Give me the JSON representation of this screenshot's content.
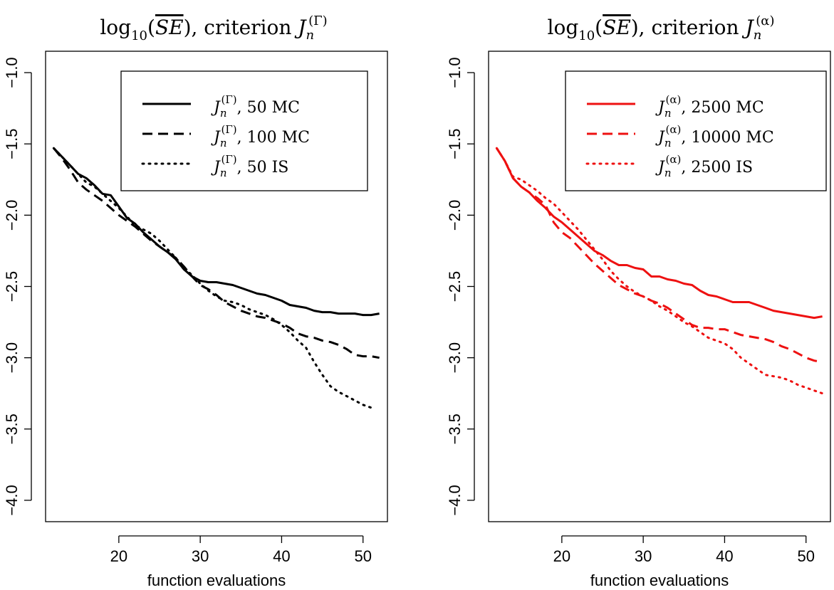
{
  "chart_data": [
    {
      "type": "line",
      "title": "log₁₀(SE̅), criterion Jₙ^(Γ)",
      "title_parts": {
        "func": "log",
        "base": "10",
        "quantity": "SE",
        "text": "criterion",
        "sym": "J",
        "sub": "n",
        "sup": "(Γ)"
      },
      "xlabel": "function evaluations",
      "ylabel": "",
      "xlim": [
        11,
        53
      ],
      "ylim": [
        -4.15,
        -0.85
      ],
      "x_ticks": [
        20,
        30,
        40,
        50
      ],
      "y_ticks": [
        -1.0,
        -1.5,
        -2.0,
        -2.5,
        -3.0,
        -3.5,
        -4.0
      ],
      "x_tick_labels": [
        "20",
        "30",
        "40",
        "50"
      ],
      "y_tick_labels": [
        "−1.0",
        "−1.5",
        "−2.0",
        "−2.5",
        "−3.0",
        "−3.5",
        "−4.0"
      ],
      "legend_position": "top-right",
      "grid": false,
      "series": [
        {
          "name": "Jₙ^(Γ), 50 MC",
          "label_sym": "J",
          "label_sub": "n",
          "label_sup": "(Γ)",
          "label_rest": ", 50 MC",
          "style": "solid",
          "color": "#000000",
          "x": [
            12,
            13,
            14,
            15,
            16,
            17,
            18,
            19,
            20,
            21,
            22,
            23,
            24,
            25,
            26,
            27,
            28,
            29,
            30,
            31,
            32,
            33,
            34,
            35,
            36,
            37,
            38,
            39,
            40,
            41,
            42,
            43,
            44,
            45,
            46,
            47,
            48,
            49,
            50,
            51,
            52
          ],
          "y": [
            -1.53,
            -1.59,
            -1.65,
            -1.71,
            -1.74,
            -1.79,
            -1.85,
            -1.86,
            -1.94,
            -2.02,
            -2.06,
            -2.12,
            -2.17,
            -2.22,
            -2.26,
            -2.31,
            -2.38,
            -2.43,
            -2.46,
            -2.47,
            -2.47,
            -2.48,
            -2.49,
            -2.51,
            -2.53,
            -2.55,
            -2.56,
            -2.58,
            -2.6,
            -2.63,
            -2.64,
            -2.65,
            -2.67,
            -2.68,
            -2.68,
            -2.69,
            -2.69,
            -2.69,
            -2.7,
            -2.7,
            -2.69
          ]
        },
        {
          "name": "Jₙ^(Γ), 100 MC",
          "label_sym": "J",
          "label_sub": "n",
          "label_sup": "(Γ)",
          "label_rest": ", 100 MC",
          "style": "dashed",
          "color": "#000000",
          "x": [
            12,
            13,
            14,
            15,
            16,
            17,
            18,
            19,
            20,
            21,
            22,
            23,
            24,
            25,
            26,
            27,
            28,
            29,
            30,
            31,
            32,
            33,
            34,
            35,
            36,
            37,
            38,
            39,
            40,
            41,
            42,
            43,
            44,
            45,
            46,
            47,
            48,
            49,
            50,
            51,
            52
          ],
          "y": [
            -1.53,
            -1.6,
            -1.68,
            -1.77,
            -1.82,
            -1.86,
            -1.9,
            -1.95,
            -2.0,
            -2.04,
            -2.08,
            -2.13,
            -2.18,
            -2.22,
            -2.26,
            -2.3,
            -2.36,
            -2.43,
            -2.49,
            -2.52,
            -2.56,
            -2.61,
            -2.64,
            -2.67,
            -2.69,
            -2.71,
            -2.72,
            -2.74,
            -2.76,
            -2.79,
            -2.83,
            -2.85,
            -2.86,
            -2.88,
            -2.89,
            -2.91,
            -2.94,
            -2.98,
            -2.99,
            -2.99,
            -3.0
          ]
        },
        {
          "name": "Jₙ^(Γ), 50 IS",
          "label_sym": "J",
          "label_sub": "n",
          "label_sup": "(Γ)",
          "label_rest": ", 50 IS",
          "style": "dotted",
          "color": "#000000",
          "x": [
            12,
            13,
            14,
            15,
            16,
            17,
            18,
            19,
            20,
            21,
            22,
            23,
            24,
            25,
            26,
            27,
            28,
            29,
            30,
            31,
            32,
            33,
            34,
            35,
            36,
            37,
            38,
            39,
            40,
            41,
            42,
            43,
            44,
            45,
            46,
            47,
            48,
            49,
            50,
            51
          ],
          "y": [
            -1.53,
            -1.59,
            -1.65,
            -1.71,
            -1.77,
            -1.8,
            -1.85,
            -1.9,
            -1.95,
            -2.01,
            -2.07,
            -2.1,
            -2.13,
            -2.18,
            -2.24,
            -2.3,
            -2.37,
            -2.42,
            -2.48,
            -2.53,
            -2.57,
            -2.6,
            -2.61,
            -2.63,
            -2.66,
            -2.68,
            -2.7,
            -2.73,
            -2.77,
            -2.82,
            -2.88,
            -2.93,
            -3.03,
            -3.12,
            -3.2,
            -3.24,
            -3.27,
            -3.3,
            -3.33,
            -3.35
          ]
        }
      ]
    },
    {
      "type": "line",
      "title": "log₁₀(SE̅), criterion Jₙ^(α)",
      "title_parts": {
        "func": "log",
        "base": "10",
        "quantity": "SE",
        "text": "criterion",
        "sym": "J",
        "sub": "n",
        "sup": "(α)"
      },
      "xlabel": "function evaluations",
      "ylabel": "",
      "xlim": [
        11,
        53
      ],
      "ylim": [
        -4.15,
        -0.85
      ],
      "x_ticks": [
        20,
        30,
        40,
        50
      ],
      "y_ticks": [
        -1.0,
        -1.5,
        -2.0,
        -2.5,
        -3.0,
        -3.5,
        -4.0
      ],
      "x_tick_labels": [
        "20",
        "30",
        "40",
        "50"
      ],
      "y_tick_labels": [
        "−1.0",
        "−1.5",
        "−2.0",
        "−2.5",
        "−3.0",
        "−3.5",
        "−4.0"
      ],
      "legend_position": "top-right",
      "grid": false,
      "series": [
        {
          "name": "Jₙ^(α), 2500 MC",
          "label_sym": "J",
          "label_sub": "n",
          "label_sup": "(α)",
          "label_rest": ", 2500 MC",
          "style": "solid",
          "color": "#ee1111",
          "x": [
            12,
            13,
            14,
            15,
            16,
            17,
            18,
            19,
            20,
            21,
            22,
            23,
            24,
            25,
            26,
            27,
            28,
            29,
            30,
            31,
            32,
            33,
            34,
            35,
            36,
            37,
            38,
            39,
            40,
            41,
            42,
            43,
            44,
            45,
            46,
            47,
            48,
            49,
            50,
            51,
            52
          ],
          "y": [
            -1.53,
            -1.62,
            -1.74,
            -1.8,
            -1.84,
            -1.9,
            -1.95,
            -2.01,
            -2.05,
            -2.1,
            -2.15,
            -2.2,
            -2.25,
            -2.28,
            -2.32,
            -2.35,
            -2.35,
            -2.37,
            -2.38,
            -2.43,
            -2.43,
            -2.45,
            -2.46,
            -2.48,
            -2.49,
            -2.53,
            -2.56,
            -2.57,
            -2.59,
            -2.61,
            -2.61,
            -2.61,
            -2.63,
            -2.65,
            -2.67,
            -2.68,
            -2.69,
            -2.7,
            -2.71,
            -2.72,
            -2.71
          ]
        },
        {
          "name": "Jₙ^(α), 10000 MC",
          "label_sym": "J",
          "label_sub": "n",
          "label_sup": "(α)",
          "label_rest": ", 10000 MC",
          "style": "dashed",
          "color": "#ee1111",
          "x": [
            12,
            13,
            14,
            15,
            16,
            17,
            18,
            19,
            20,
            21,
            22,
            23,
            24,
            25,
            26,
            27,
            28,
            29,
            30,
            31,
            32,
            33,
            34,
            35,
            36,
            37,
            38,
            39,
            40,
            41,
            42,
            43,
            44,
            45,
            46,
            47,
            48,
            49,
            50,
            51,
            52
          ],
          "y": [
            -1.53,
            -1.62,
            -1.74,
            -1.8,
            -1.84,
            -1.88,
            -1.93,
            -2.05,
            -2.12,
            -2.16,
            -2.22,
            -2.28,
            -2.34,
            -2.39,
            -2.44,
            -2.49,
            -2.52,
            -2.55,
            -2.57,
            -2.6,
            -2.62,
            -2.65,
            -2.69,
            -2.73,
            -2.77,
            -2.79,
            -2.79,
            -2.8,
            -2.8,
            -2.82,
            -2.84,
            -2.85,
            -2.86,
            -2.87,
            -2.89,
            -2.92,
            -2.94,
            -2.97,
            -3.0,
            -3.02,
            -3.03
          ]
        },
        {
          "name": "Jₙ^(α), 2500 IS",
          "label_sym": "J",
          "label_sub": "n",
          "label_sup": "(α)",
          "label_rest": ", 2500 IS",
          "style": "dotted",
          "color": "#ee1111",
          "x": [
            12,
            13,
            14,
            15,
            16,
            17,
            18,
            19,
            20,
            21,
            22,
            23,
            24,
            25,
            26,
            27,
            28,
            29,
            30,
            31,
            32,
            33,
            34,
            35,
            36,
            37,
            38,
            39,
            40,
            41,
            42,
            43,
            44,
            45,
            46,
            47,
            48,
            49,
            50,
            51,
            52
          ],
          "y": [
            -1.53,
            -1.62,
            -1.73,
            -1.75,
            -1.79,
            -1.83,
            -1.88,
            -1.92,
            -1.98,
            -2.04,
            -2.1,
            -2.17,
            -2.24,
            -2.31,
            -2.39,
            -2.45,
            -2.5,
            -2.54,
            -2.57,
            -2.6,
            -2.64,
            -2.67,
            -2.71,
            -2.75,
            -2.78,
            -2.82,
            -2.86,
            -2.88,
            -2.9,
            -2.94,
            -3.0,
            -3.04,
            -3.08,
            -3.12,
            -3.13,
            -3.14,
            -3.16,
            -3.19,
            -3.21,
            -3.23,
            -3.25
          ]
        }
      ]
    }
  ]
}
